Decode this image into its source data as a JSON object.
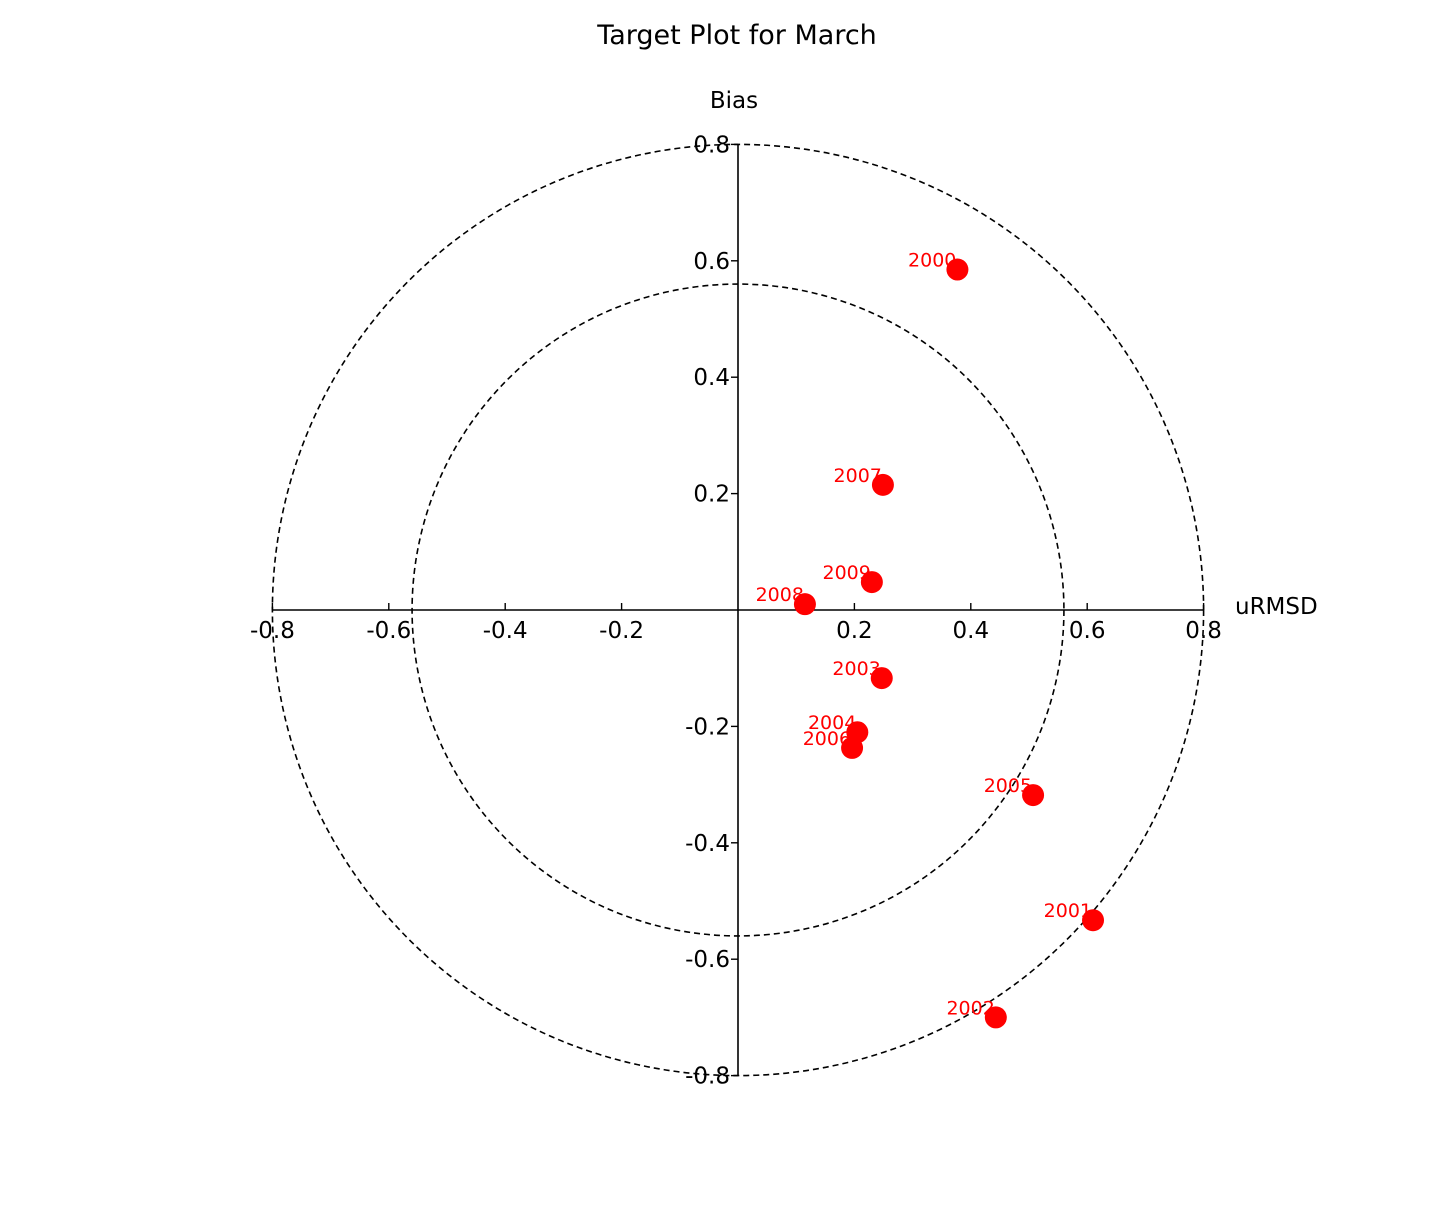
{
  "chart_data": {
    "type": "scatter",
    "title": "Target Plot for March",
    "xlabel": "uRMSD",
    "ylabel": "Bias",
    "xlim": [
      -0.8,
      0.8
    ],
    "ylim": [
      -0.8,
      0.8
    ],
    "xticks": [
      "-0.8",
      "-0.6",
      "-0.4",
      "-0.2",
      "0.2",
      "0.4",
      "0.6",
      "0.8"
    ],
    "yticks": [
      "0.8",
      "0.6",
      "0.4",
      "0.2",
      "-0.2",
      "-0.4",
      "-0.6",
      "-0.8"
    ],
    "circles": [
      0.56,
      0.8
    ],
    "grid": false,
    "marker_color": "#ff0000",
    "points": [
      {
        "label": "2000",
        "x": 0.377,
        "y": 0.585
      },
      {
        "label": "2001",
        "x": 0.61,
        "y": -0.533
      },
      {
        "label": "2002",
        "x": 0.443,
        "y": -0.7
      },
      {
        "label": "2003",
        "x": 0.247,
        "y": -0.117
      },
      {
        "label": "2004",
        "x": 0.205,
        "y": -0.21
      },
      {
        "label": "2005",
        "x": 0.507,
        "y": -0.318
      },
      {
        "label": "2006",
        "x": 0.196,
        "y": -0.237
      },
      {
        "label": "2007",
        "x": 0.249,
        "y": 0.215
      },
      {
        "label": "2008",
        "x": 0.115,
        "y": 0.01
      },
      {
        "label": "2009",
        "x": 0.23,
        "y": 0.048
      }
    ]
  }
}
